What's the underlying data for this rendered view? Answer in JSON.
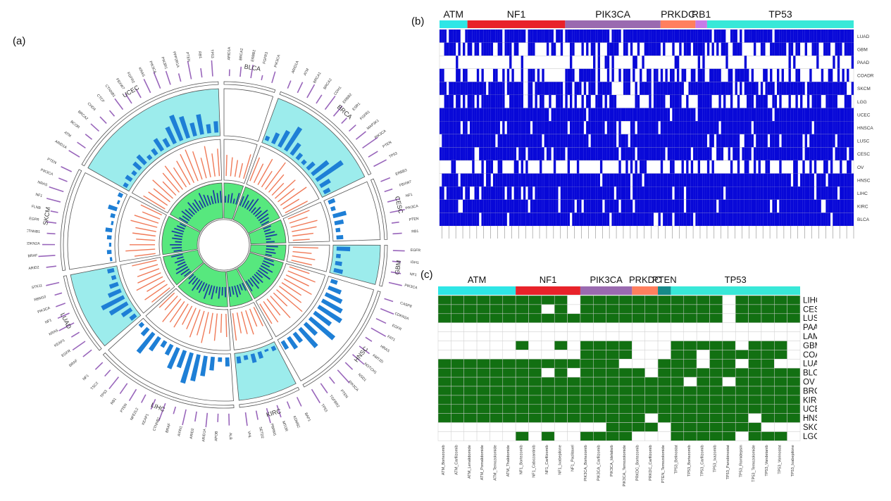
{
  "panels": {
    "a": "(a)",
    "b": "(b)",
    "c": "(c)"
  },
  "colors": {
    "ATM": "#2ee6e6",
    "NF1": "#e8222a",
    "PIK3CA": "#9a6ab0",
    "PRKDC": "#ff7f5e",
    "RB1": "#c77be8",
    "PTEN": "#168a8a",
    "TP53": "#38e8d8",
    "heat_b": "#0808d8",
    "heat_c": "#127012",
    "ring_bg": "#9cecec",
    "bar_blue": "#1e7fd6",
    "bar_orange": "#f07a58",
    "inner_green": "#57e87e",
    "inner_bar": "#1c3fa0",
    "outer_purple": "#9966bb"
  },
  "chart_data": [
    {
      "id": "a",
      "type": "circos",
      "sectors": [
        {
          "name": "BLCA",
          "genes": [
            "ARID1A",
            "BRCA2",
            "ERBB2",
            "FGFR3",
            "PIK3CA"
          ],
          "outer": [
            8,
            12,
            16,
            6,
            14
          ],
          "blue": [
            0,
            0,
            0,
            0,
            0
          ],
          "orange": [
            10,
            9,
            8,
            7,
            12
          ],
          "inner": [
            4,
            5,
            6,
            3,
            7
          ]
        },
        {
          "name": "BRCA",
          "genes": [
            "ARID1A",
            "ATM",
            "BRCA1",
            "BRCA2",
            "CDH1",
            "ERBB2",
            "ESR1",
            "FGFR1",
            "MAP3K1",
            "PIK3CA",
            "PTEN",
            "TP53"
          ],
          "outer": [
            10,
            14,
            18,
            12,
            20,
            16,
            9,
            11,
            15,
            22,
            13,
            17
          ],
          "blue": [
            2,
            5,
            8,
            12,
            6,
            3,
            2,
            4,
            9,
            14,
            5,
            3
          ],
          "orange": [
            12,
            10,
            14,
            9,
            16,
            11,
            8,
            13,
            10,
            15,
            9,
            12
          ],
          "inner": [
            6,
            8,
            5,
            7,
            9,
            4,
            6,
            5,
            8,
            7,
            6,
            5
          ]
        },
        {
          "name": "CESC",
          "genes": [
            "ERBB3",
            "FBXW7",
            "NF1",
            "PIK3CA",
            "PTEN",
            "RB1"
          ],
          "outer": [
            12,
            10,
            15,
            18,
            9,
            11
          ],
          "blue": [
            3,
            2,
            6,
            4,
            2,
            3
          ],
          "orange": [
            11,
            9,
            13,
            12,
            10,
            8
          ],
          "inner": [
            5,
            4,
            6,
            7,
            3,
            5
          ]
        },
        {
          "name": "GBM",
          "genes": [
            "EGFR",
            "IDH1",
            "NF1",
            "PIK3CA"
          ],
          "outer": [
            14,
            10,
            12,
            16
          ],
          "blue": [
            6,
            2,
            3,
            4
          ],
          "orange": [
            12,
            9,
            11,
            10
          ],
          "inner": [
            7,
            5,
            6,
            4
          ]
        },
        {
          "name": "HNSC",
          "genes": [
            "CASP8",
            "CDKN2A",
            "EGFR",
            "FAT1",
            "HRAS",
            "KMT2D",
            "NOTCH1",
            "NSD1",
            "PIK3CA",
            "PTEN",
            "TGFBR2",
            "TP53"
          ],
          "outer": [
            11,
            17,
            13,
            20,
            9,
            15,
            18,
            12,
            21,
            10,
            14,
            19
          ],
          "blue": [
            3,
            6,
            8,
            10,
            12,
            9,
            14,
            7,
            11,
            5,
            6,
            4
          ],
          "orange": [
            10,
            14,
            12,
            15,
            11,
            13,
            16,
            9,
            14,
            10,
            12,
            11
          ],
          "inner": [
            6,
            7,
            5,
            8,
            6,
            9,
            5,
            7,
            6,
            8,
            5,
            7
          ]
        },
        {
          "name": "KIRC",
          "genes": [
            "BAP1",
            "KDM5C",
            "MTOR",
            "PBRM1",
            "SETD2",
            "VHL"
          ],
          "outer": [
            12,
            9,
            15,
            18,
            11,
            16
          ],
          "blue": [
            2,
            1,
            3,
            4,
            2,
            3
          ],
          "orange": [
            10,
            9,
            12,
            11,
            10,
            13
          ],
          "inner": [
            5,
            4,
            6,
            7,
            5,
            6
          ]
        },
        {
          "name": "LIHC",
          "genes": [
            "ALB",
            "APOB",
            "ARID1A",
            "ARID2",
            "AXIN1",
            "BRAF",
            "CTNNB1",
            "KEAP1",
            "NFE2L2",
            "PTEN",
            "RB1",
            "TP53",
            "TSC2",
            "NF1"
          ],
          "outer": [
            14,
            10,
            17,
            12,
            19,
            9,
            22,
            13,
            11,
            16,
            15,
            18,
            10,
            12
          ],
          "blue": [
            4,
            2,
            6,
            9,
            12,
            14,
            8,
            10,
            5,
            3,
            7,
            11,
            4,
            2
          ],
          "orange": [
            11,
            9,
            13,
            10,
            15,
            12,
            14,
            11,
            10,
            13,
            12,
            14,
            9,
            10
          ],
          "inner": [
            6,
            5,
            7,
            4,
            8,
            6,
            9,
            5,
            7,
            6,
            8,
            5,
            6,
            4
          ]
        },
        {
          "name": "LUAD",
          "genes": [
            "BRAF",
            "EGFR",
            "KEAP1",
            "KRAS",
            "NF1",
            "PIK3CA",
            "RBM10",
            "STK11"
          ],
          "outer": [
            13,
            18,
            11,
            20,
            15,
            12,
            9,
            16
          ],
          "blue": [
            3,
            5,
            9,
            11,
            6,
            4,
            2,
            3
          ],
          "orange": [
            11,
            13,
            10,
            14,
            12,
            11,
            9,
            12
          ],
          "inner": [
            5,
            6,
            8,
            7,
            5,
            6,
            4,
            7
          ]
        },
        {
          "name": "SKCM",
          "genes": [
            "ARID2",
            "BRAF",
            "CDKN2A",
            "CTNNB1",
            "EGFR",
            "FLNB",
            "NF1",
            "NRAS",
            "PIK3CA",
            "PTEN"
          ],
          "outer": [
            12,
            20,
            15,
            10,
            13,
            9,
            17,
            18,
            11,
            14
          ],
          "blue": [
            1,
            2,
            1,
            2,
            3,
            1,
            2,
            4,
            1,
            2
          ],
          "orange": [
            10,
            14,
            12,
            9,
            11,
            10,
            13,
            12,
            9,
            11
          ],
          "inner": [
            5,
            6,
            7,
            4,
            6,
            5,
            7,
            6,
            5,
            4
          ]
        },
        {
          "name": "UCEC",
          "genes": [
            "ARID1A",
            "ATM",
            "BCOR",
            "BRCA2",
            "CHD4",
            "CTCF",
            "CTNNB1",
            "FBXW7",
            "FGFR2",
            "KRAS",
            "PIK3CA",
            "PIK3R1",
            "PPP2R1A",
            "PTEN",
            "RB1",
            "TP53"
          ],
          "outer": [
            15,
            12,
            10,
            13,
            11,
            9,
            16,
            14,
            12,
            18,
            21,
            17,
            10,
            22,
            11,
            19
          ],
          "blue": [
            2,
            3,
            2,
            4,
            5,
            2,
            3,
            6,
            4,
            8,
            12,
            10,
            6,
            9,
            4,
            5
          ],
          "orange": [
            12,
            11,
            10,
            13,
            9,
            12,
            14,
            11,
            13,
            15,
            16,
            14,
            10,
            15,
            11,
            13
          ],
          "inner": [
            6,
            5,
            7,
            6,
            5,
            8,
            6,
            7,
            5,
            9,
            7,
            6,
            5,
            8,
            6,
            7
          ]
        }
      ]
    },
    {
      "id": "b",
      "type": "heatmap",
      "gene_groups": [
        {
          "name": "ATM",
          "cols": 12
        },
        {
          "name": "NF1",
          "cols": 42
        },
        {
          "name": "PIK3CA",
          "cols": 41
        },
        {
          "name": "PRKDC",
          "cols": 15
        },
        {
          "name": "RB1",
          "cols": 5
        },
        {
          "name": "TP53",
          "cols": 63
        }
      ],
      "rows": [
        "LUAD",
        "GBM",
        "PAAD",
        "COADREAD",
        "SKCM",
        "LGG",
        "UCEC",
        "HNSCA",
        "LUSC",
        "CESC",
        "OV",
        "HNSC",
        "LIHC",
        "KIRC",
        "BLCA"
      ],
      "row_density": [
        0.92,
        0.55,
        0.12,
        0.45,
        0.82,
        0.5,
        0.97,
        0.9,
        0.86,
        0.88,
        0.3,
        0.93,
        0.91,
        0.89,
        0.94
      ]
    },
    {
      "id": "c",
      "type": "heatmap",
      "gene_groups": [
        {
          "name": "ATM",
          "cols": 6
        },
        {
          "name": "NF1",
          "cols": 5
        },
        {
          "name": "PIK3CA",
          "cols": 4
        },
        {
          "name": "PRKDC",
          "cols": 2
        },
        {
          "name": "PTEN",
          "cols": 1
        },
        {
          "name": "TP53",
          "cols": 10
        }
      ],
      "columns": [
        "ATM_Bortezomib",
        "ATM_Carfilzomib",
        "ATM_Lenalidomide",
        "ATM_Pomalidomide",
        "ATM_Temozolomide",
        "ATM_Thalidomide",
        "NF1_Bortezomib",
        "NF1_Cabozantinib",
        "NF1_Carfilzomib",
        "NF1_Ixabepilone",
        "NF1_Paclitaxel",
        "PIK3CA_Bortezomib",
        "PIK3CA_Carfilzomib",
        "PIK3CA_Idelalisib",
        "PIK3CA_Temozolomide",
        "PRKDC_Bortezomib",
        "PRKDC_Carfilzomib",
        "PTEN_Temozolomide",
        "TP53_Belinostat",
        "TP53_Bortezomib",
        "TP53_Carfilzomib",
        "TP53_Ixazomib",
        "TP53_Panobinostat",
        "TP53_Romidepsin",
        "TP53_Temozolomide",
        "TP53_Vandetanib",
        "TP53_Vorinostat",
        "TP53_Ixabepilone"
      ],
      "rows": [
        "LIHC",
        "CESC",
        "LUSC",
        "PAAD",
        "LAML",
        "GBM",
        "COADREAD",
        "LUAD",
        "BLCA",
        "OV",
        "BRCA",
        "KIRC",
        "UCEC",
        "HNSC",
        "SKCM",
        "LGG"
      ],
      "matrix": [
        "1111111111011111111111011111",
        "1111111101011111111111011111",
        "1111111111111111111111011111",
        "0000000000000000000000000000",
        "0000000000000000000000000000",
        "0000001001011110001111101110",
        "0000000000011110001101111110",
        "1111111111111100011101101100",
        "1111111101011111011111111111",
        "1111111111111111111011011111",
        "1111111111111111111111111111",
        "1111111111111111111111111111",
        "1111111111111111111111111111",
        "1111111111111111011111110111",
        "0000000000000111101111111000",
        "0000001010011110001111101110"
      ]
    }
  ]
}
